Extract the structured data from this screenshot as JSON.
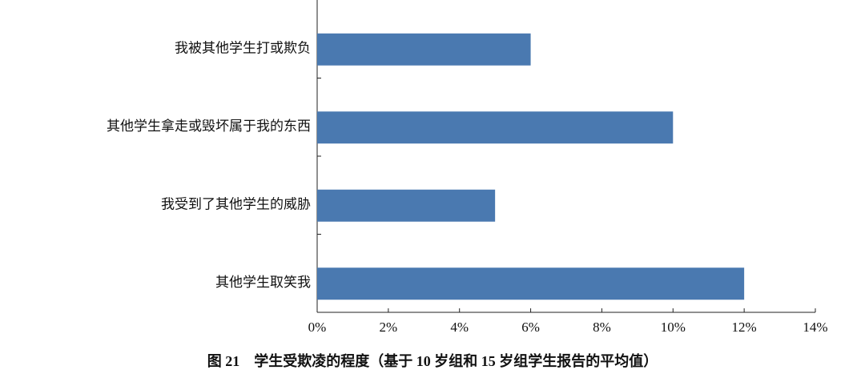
{
  "chart_data": {
    "type": "barh",
    "title": "图 21　学生受欺凌的程度（基于 10 岁组和 15 岁组学生报告的平均值）",
    "categories": [
      "我被其他学生打或欺负",
      "其他学生拿走或毁坏属于我的东西",
      "我受到了其他学生的威胁",
      "其他学生取笑我"
    ],
    "values": [
      6,
      10,
      5,
      12
    ],
    "color": "#4a79b0",
    "xlim": [
      0,
      14
    ],
    "xticks": [
      {
        "value": 0,
        "label": "0%"
      },
      {
        "value": 2,
        "label": "2%"
      },
      {
        "value": 4,
        "label": "4%"
      },
      {
        "value": 6,
        "label": "6%"
      },
      {
        "value": 8,
        "label": "8%"
      },
      {
        "value": 10,
        "label": "10%"
      },
      {
        "value": 12,
        "label": "12%"
      },
      {
        "value": 14,
        "label": "14%"
      }
    ],
    "grid": false
  }
}
